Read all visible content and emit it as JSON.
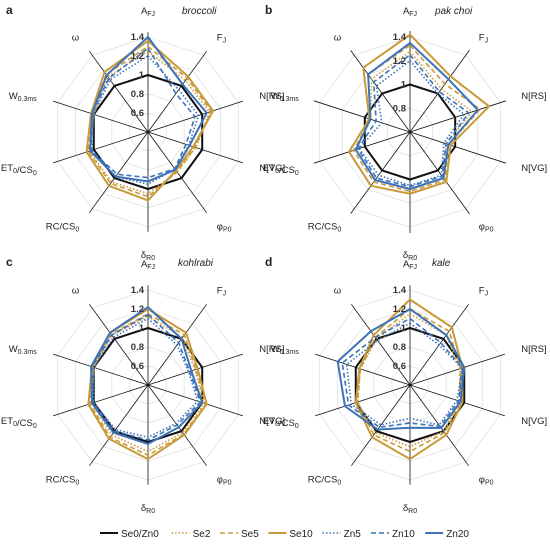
{
  "legend": [
    {
      "name": "Se0/Zn0",
      "color": "#111111",
      "dash": "",
      "width": 2
    },
    {
      "name": "Se2",
      "color": "#c99a3a",
      "dash": "1.5,2",
      "width": 1.6
    },
    {
      "name": "Se5",
      "color": "#c99a3a",
      "dash": "5,3",
      "width": 1.6
    },
    {
      "name": "Se10",
      "color": "#c99a3a",
      "dash": "",
      "width": 2
    },
    {
      "name": "Zn5",
      "color": "#3d72b8",
      "dash": "1.5,2",
      "width": 1.6
    },
    {
      "name": "Zn10",
      "color": "#3d72b8",
      "dash": "5,3",
      "width": 1.6
    },
    {
      "name": "Zn20",
      "color": "#3d72b8",
      "dash": "",
      "width": 2
    }
  ],
  "chart_data": [
    {
      "type": "radar",
      "panel": "a",
      "title": "broccoli",
      "axes": [
        "A_FJ",
        "F_J",
        "N[RS]",
        "N[VG]",
        "φ_P0",
        "δ_R0",
        "RC/CS_0",
        "ET_0/CS_0",
        "W_0.3ms",
        "ω"
      ],
      "ticks": [
        0.6,
        0.8,
        1,
        1.2,
        1.4
      ],
      "range": [
        0.4,
        1.4
      ],
      "series": [
        {
          "values": [
            1,
            1,
            1,
            1,
            1,
            1,
            1,
            1,
            1,
            1
          ]
        },
        {
          "values": [
            1.25,
            1.07,
            1.08,
            0.93,
            0.92,
            1.05,
            1.05,
            1.05,
            1.0,
            1.12
          ]
        },
        {
          "values": [
            1.3,
            1.1,
            1.1,
            0.92,
            0.92,
            1.08,
            1.07,
            1.06,
            1.02,
            1.15
          ]
        },
        {
          "values": [
            1.36,
            1.12,
            1.12,
            0.9,
            0.9,
            1.12,
            1.1,
            1.08,
            1.03,
            1.18
          ]
        },
        {
          "values": [
            1.2,
            0.95,
            0.96,
            0.85,
            0.88,
            0.95,
            0.98,
            1.02,
            1.0,
            1.08
          ]
        },
        {
          "values": [
            1.28,
            0.9,
            0.92,
            0.82,
            0.88,
            0.88,
            0.95,
            1.03,
            1.02,
            1.1
          ]
        },
        {
          "values": [
            1.4,
            1.02,
            1.05,
            0.86,
            0.89,
            0.92,
            0.98,
            1.04,
            1.02,
            1.14
          ]
        }
      ]
    },
    {
      "type": "radar",
      "panel": "b",
      "title": "pak choi",
      "axes": [
        "A_FJ",
        "F_J",
        "N[RS]",
        "N[VG]",
        "φ_P0",
        "δ_R0",
        "RC/CS_0",
        "ET_0/CS_0",
        "W_0.3ms",
        "ω"
      ],
      "ticks": [
        0.8,
        1,
        1.2,
        1.4
      ],
      "range": [
        0.6,
        1.4
      ],
      "series": [
        {
          "values": [
            1,
            1,
            1,
            1,
            1,
            1,
            1,
            1,
            1,
            1
          ]
        },
        {
          "values": [
            1.28,
            1.05,
            1.15,
            0.92,
            1.08,
            1.08,
            1.1,
            1.08,
            0.95,
            1.15
          ]
        },
        {
          "values": [
            1.33,
            1.1,
            1.22,
            0.94,
            1.1,
            1.1,
            1.12,
            1.1,
            0.95,
            1.2
          ]
        },
        {
          "values": [
            1.42,
            1.18,
            1.3,
            0.96,
            1.12,
            1.12,
            1.16,
            1.14,
            0.96,
            1.27
          ]
        },
        {
          "values": [
            1.2,
            1.0,
            1.08,
            0.9,
            1.05,
            1.05,
            1.05,
            1.05,
            0.85,
            1.08
          ]
        },
        {
          "values": [
            1.25,
            1.02,
            1.12,
            0.92,
            1.06,
            1.06,
            1.08,
            1.06,
            0.9,
            1.12
          ]
        },
        {
          "values": [
            1.35,
            1.15,
            1.2,
            0.94,
            1.08,
            1.08,
            1.1,
            1.08,
            0.95,
            1.2
          ]
        }
      ]
    },
    {
      "type": "radar",
      "panel": "c",
      "title": "kohlrabi",
      "axes": [
        "A_FJ",
        "F_J",
        "N[RS]",
        "N[VG]",
        "φ_P0",
        "δ_R0",
        "RC/CS_0",
        "ET_0/CS_0",
        "W_0.3ms",
        "ω"
      ],
      "ticks": [
        0.6,
        0.8,
        1,
        1.2,
        1.4
      ],
      "range": [
        0.4,
        1.4
      ],
      "series": [
        {
          "values": [
            1,
            1,
            1,
            1,
            1,
            1,
            1,
            1,
            1,
            1
          ]
        },
        {
          "values": [
            1.12,
            1.02,
            0.92,
            1.02,
            1.02,
            1.1,
            1.05,
            1.02,
            1.0,
            1.05
          ]
        },
        {
          "values": [
            1.15,
            1.05,
            0.93,
            1.04,
            1.04,
            1.14,
            1.08,
            1.04,
            1.0,
            1.06
          ]
        },
        {
          "values": [
            1.2,
            1.08,
            0.95,
            1.05,
            1.05,
            1.18,
            1.1,
            1.06,
            1.02,
            1.08
          ]
        },
        {
          "values": [
            1.1,
            0.92,
            0.85,
            0.95,
            0.9,
            0.95,
            0.98,
            1.0,
            1.0,
            1.02
          ]
        },
        {
          "values": [
            1.14,
            0.95,
            0.86,
            0.98,
            0.92,
            0.98,
            1.0,
            1.01,
            1.02,
            1.05
          ]
        },
        {
          "values": [
            1.22,
            1.0,
            0.88,
            1.0,
            0.95,
            1.02,
            1.02,
            1.02,
            1.03,
            1.08
          ]
        }
      ]
    },
    {
      "type": "radar",
      "panel": "d",
      "title": "kale",
      "axes": [
        "A_FJ",
        "F_J",
        "N[RS]",
        "N[VG]",
        "φ_P0",
        "δ_R0",
        "RC/CS_0",
        "ET_0/CS_0",
        "W_0.3ms",
        "ω"
      ],
      "ticks": [
        0.6,
        0.8,
        1,
        1.2,
        1.4
      ],
      "range": [
        0.4,
        1.4
      ],
      "series": [
        {
          "values": [
            1,
            1,
            1,
            1,
            1,
            1,
            1,
            1,
            1,
            1
          ]
        },
        {
          "values": [
            1.15,
            1.05,
            0.95,
            0.95,
            1.0,
            1.05,
            1.02,
            0.98,
            0.95,
            1.0
          ]
        },
        {
          "values": [
            1.2,
            1.1,
            0.96,
            0.96,
            1.02,
            1.1,
            1.05,
            0.98,
            0.95,
            1.02
          ]
        },
        {
          "values": [
            1.3,
            1.15,
            0.98,
            0.98,
            1.05,
            1.18,
            1.08,
            1.0,
            0.96,
            1.05
          ]
        },
        {
          "values": [
            1.05,
            0.92,
            0.98,
            0.92,
            0.92,
            0.75,
            0.92,
            1.05,
            1.1,
            0.98
          ]
        },
        {
          "values": [
            1.1,
            0.95,
            0.98,
            0.94,
            0.94,
            0.8,
            0.95,
            1.08,
            1.15,
            1.02
          ]
        },
        {
          "values": [
            1.2,
            1.05,
            1.0,
            0.96,
            0.96,
            0.85,
            0.98,
            1.12,
            1.2,
            1.1
          ]
        }
      ]
    }
  ]
}
